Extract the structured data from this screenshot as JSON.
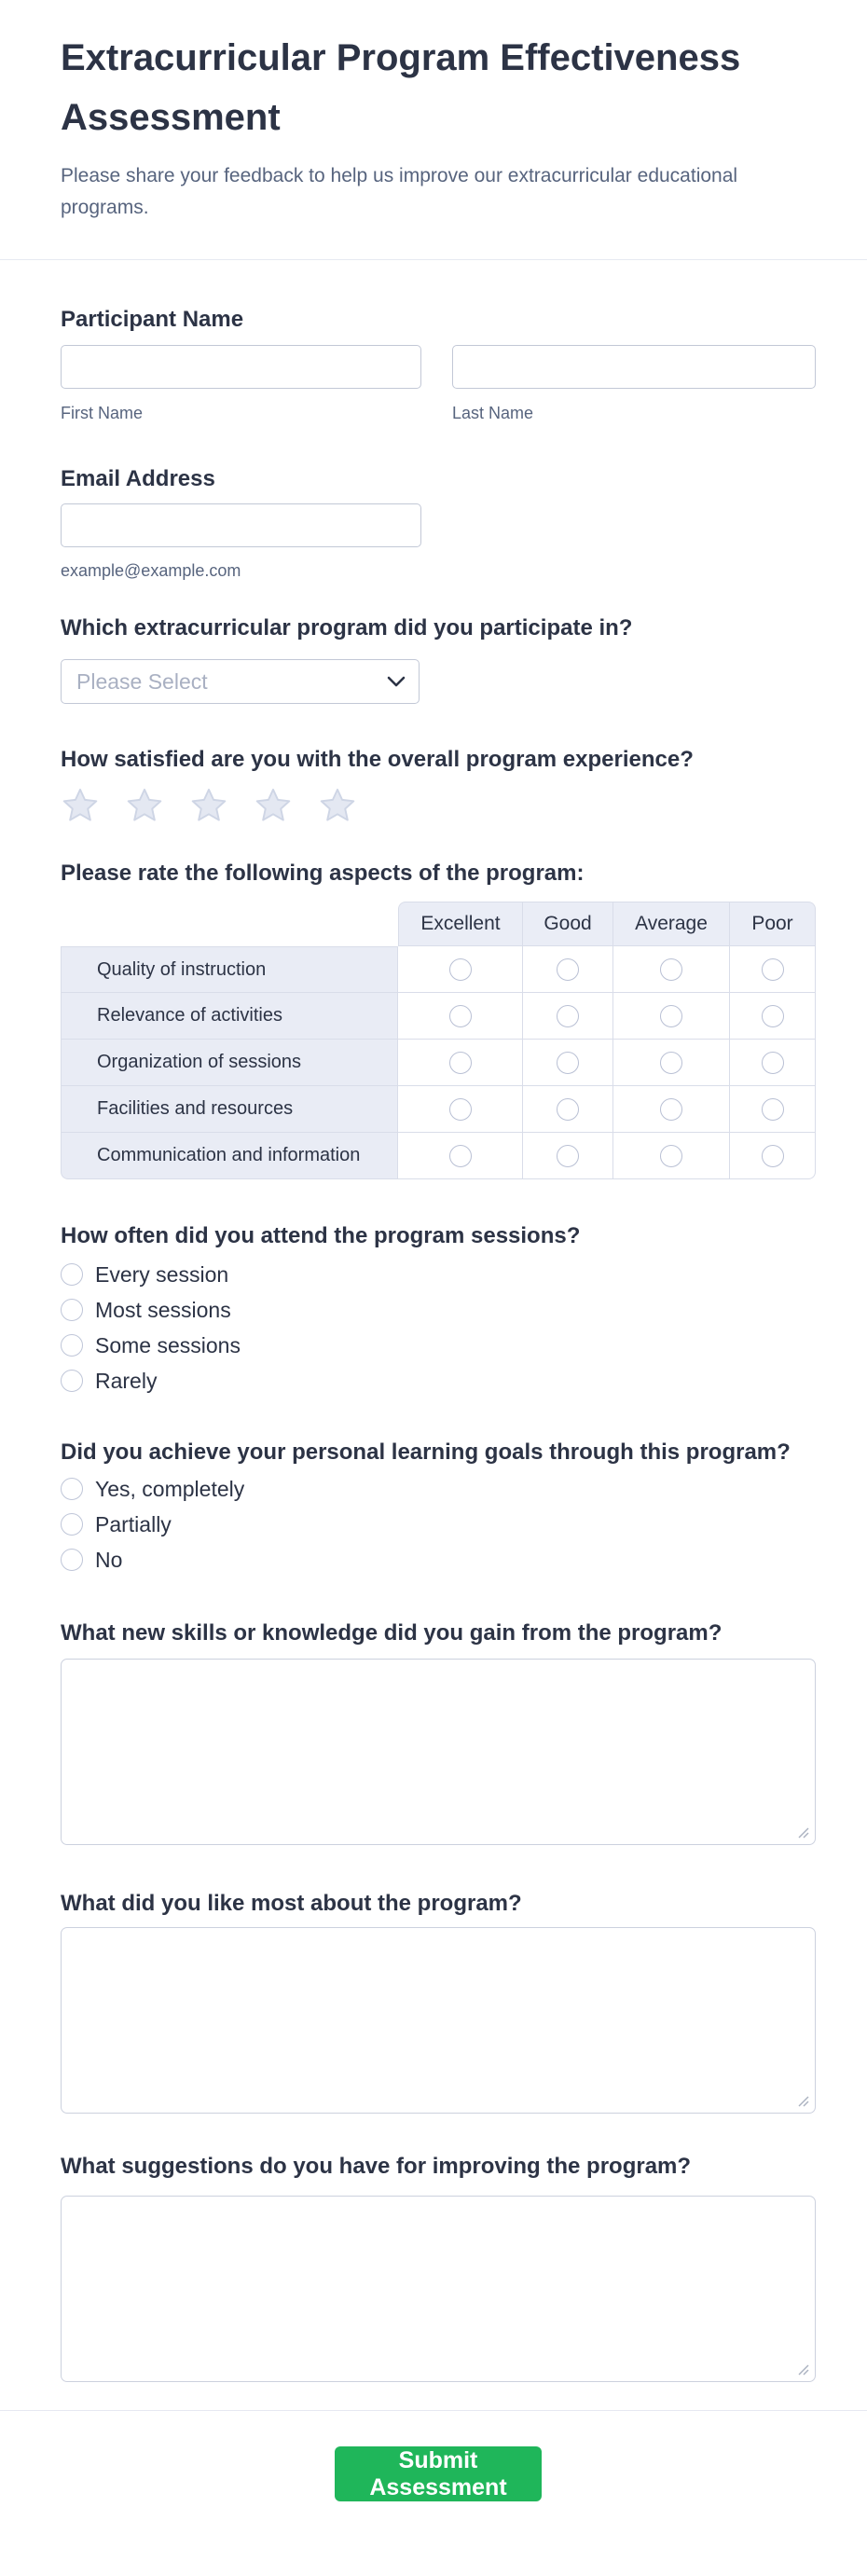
{
  "form": {
    "title": "Extracurricular Program Effectiveness Assessment",
    "subtitle": "Please share your feedback to help us improve our extracurricular educational programs.",
    "participant_name": {
      "label": "Participant Name",
      "first_value": "",
      "first_sublabel": "First Name",
      "last_value": "",
      "last_sublabel": "Last Name"
    },
    "email": {
      "label": "Email Address",
      "value": "",
      "sublabel": "example@example.com"
    },
    "program_select": {
      "label": "Which extracurricular program did you participate in?",
      "placeholder": "Please Select"
    },
    "satisfaction": {
      "label": "How satisfied are you with the overall program experience?",
      "star_count": 5,
      "selected_stars": 0,
      "star_icon": "star-outline"
    },
    "rating_table": {
      "label": "Please rate the following aspects of the program:",
      "columns": [
        "Excellent",
        "Good",
        "Average",
        "Poor"
      ],
      "rows": [
        "Quality of instruction",
        "Relevance of activities",
        "Organization of sessions",
        "Facilities and resources",
        "Communication and information"
      ]
    },
    "attendance": {
      "label": "How often did you attend the program sessions?",
      "options": [
        "Every session",
        "Most sessions",
        "Some sessions",
        "Rarely"
      ]
    },
    "goals": {
      "label": "Did you achieve your personal learning goals through this program?",
      "options": [
        "Yes, completely",
        "Partially",
        "No"
      ]
    },
    "skills": {
      "label": "What new skills or knowledge did you gain from the program?",
      "value": ""
    },
    "liked": {
      "label": "What did you like most about the program?",
      "value": ""
    },
    "suggestions": {
      "label": "What suggestions do you have for improving the program?",
      "value": ""
    },
    "submit_label": "Submit Assessment",
    "colors": {
      "accent_green": "#1fb65a",
      "heading_navy": "#2c3345",
      "muted_text": "#57647e",
      "input_border": "#c2c8d6",
      "table_cell_bg": "#e9ecf5",
      "star_fill": "#e4e8f2",
      "star_stroke": "#ced5e5"
    }
  }
}
